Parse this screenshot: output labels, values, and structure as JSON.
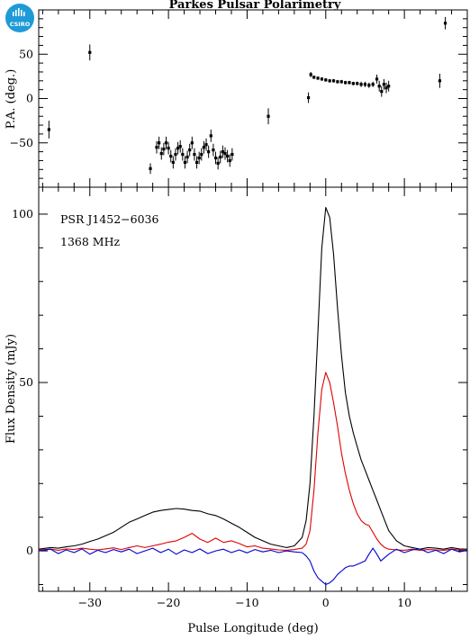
{
  "logo": {
    "text": "CSIRO",
    "color": "#1e9bd7"
  },
  "chart_data": [
    {
      "type": "scatter",
      "title": "Parkes Pulsar Polarimetry",
      "xlabel": "",
      "ylabel": "P.A. (deg.)",
      "xlim": [
        -36.5,
        18
      ],
      "ylim": [
        -100,
        100
      ],
      "yticks": [
        -50,
        0,
        50
      ],
      "xticks": [
        -30,
        -20,
        -10,
        0,
        10
      ],
      "series": [
        {
          "color": "#000000",
          "points": [
            {
              "x": -35.2,
              "y": -35,
              "err": 10
            },
            {
              "x": -30.0,
              "y": 52,
              "err": 9
            },
            {
              "x": -22.3,
              "y": -79,
              "err": 6
            },
            {
              "x": -21.5,
              "y": -55,
              "err": 7
            },
            {
              "x": -21.2,
              "y": -50,
              "err": 7
            },
            {
              "x": -20.9,
              "y": -62,
              "err": 7
            },
            {
              "x": -20.6,
              "y": -57,
              "err": 7
            },
            {
              "x": -20.3,
              "y": -50,
              "err": 7
            },
            {
              "x": -20.0,
              "y": -56,
              "err": 7
            },
            {
              "x": -19.7,
              "y": -65,
              "err": 7
            },
            {
              "x": -19.4,
              "y": -72,
              "err": 7
            },
            {
              "x": -19.1,
              "y": -63,
              "err": 7
            },
            {
              "x": -18.8,
              "y": -56,
              "err": 7
            },
            {
              "x": -18.5,
              "y": -54,
              "err": 7
            },
            {
              "x": -18.2,
              "y": -63,
              "err": 7
            },
            {
              "x": -17.9,
              "y": -72,
              "err": 7
            },
            {
              "x": -17.6,
              "y": -66,
              "err": 7
            },
            {
              "x": -17.3,
              "y": -58,
              "err": 7
            },
            {
              "x": -17.0,
              "y": -50,
              "err": 7
            },
            {
              "x": -16.7,
              "y": -63,
              "err": 7
            },
            {
              "x": -16.4,
              "y": -72,
              "err": 7
            },
            {
              "x": -16.1,
              "y": -67,
              "err": 7
            },
            {
              "x": -15.8,
              "y": -63,
              "err": 7
            },
            {
              "x": -15.5,
              "y": -55,
              "err": 7
            },
            {
              "x": -15.2,
              "y": -52,
              "err": 7
            },
            {
              "x": -14.9,
              "y": -60,
              "err": 7
            },
            {
              "x": -14.6,
              "y": -42,
              "err": 7
            },
            {
              "x": -14.3,
              "y": -58,
              "err": 7
            },
            {
              "x": -14.0,
              "y": -67,
              "err": 7
            },
            {
              "x": -13.7,
              "y": -73,
              "err": 7
            },
            {
              "x": -13.4,
              "y": -66,
              "err": 7
            },
            {
              "x": -13.1,
              "y": -60,
              "err": 7
            },
            {
              "x": -12.8,
              "y": -62,
              "err": 7
            },
            {
              "x": -12.5,
              "y": -65,
              "err": 7
            },
            {
              "x": -12.2,
              "y": -70,
              "err": 7
            },
            {
              "x": -11.9,
              "y": -63,
              "err": 7
            },
            {
              "x": -7.3,
              "y": -20,
              "err": 9
            },
            {
              "x": -2.2,
              "y": 1,
              "err": 6
            },
            {
              "x": -1.9,
              "y": 27,
              "err": 3
            },
            {
              "x": -1.5,
              "y": 24,
              "err": 2
            },
            {
              "x": -1.0,
              "y": 23,
              "err": 2
            },
            {
              "x": -0.5,
              "y": 22,
              "err": 2
            },
            {
              "x": 0.0,
              "y": 21,
              "err": 2
            },
            {
              "x": 0.5,
              "y": 20,
              "err": 2
            },
            {
              "x": 1.0,
              "y": 20,
              "err": 2
            },
            {
              "x": 1.5,
              "y": 19,
              "err": 2
            },
            {
              "x": 2.0,
              "y": 19,
              "err": 2
            },
            {
              "x": 2.5,
              "y": 18,
              "err": 2
            },
            {
              "x": 3.0,
              "y": 18,
              "err": 2
            },
            {
              "x": 3.5,
              "y": 17,
              "err": 2
            },
            {
              "x": 4.0,
              "y": 17,
              "err": 2
            },
            {
              "x": 4.5,
              "y": 16,
              "err": 3
            },
            {
              "x": 5.0,
              "y": 16,
              "err": 3
            },
            {
              "x": 5.5,
              "y": 15,
              "err": 3
            },
            {
              "x": 6.0,
              "y": 16,
              "err": 3
            },
            {
              "x": 6.5,
              "y": 22,
              "err": 5
            },
            {
              "x": 6.8,
              "y": 14,
              "err": 6
            },
            {
              "x": 7.1,
              "y": 8,
              "err": 6
            },
            {
              "x": 7.4,
              "y": 16,
              "err": 6
            },
            {
              "x": 7.7,
              "y": 12,
              "err": 6
            },
            {
              "x": 8.0,
              "y": 14,
              "err": 6
            },
            {
              "x": 14.5,
              "y": 20,
              "err": 8
            },
            {
              "x": 15.2,
              "y": 85,
              "err": 7
            }
          ]
        }
      ]
    },
    {
      "type": "line",
      "title": "",
      "xlabel": "Pulse Longitude (deg)",
      "ylabel": "Flux Density (mJy)",
      "xlim": [
        -36.5,
        18
      ],
      "ylim": [
        -12,
        108
      ],
      "yticks": [
        0,
        50,
        100
      ],
      "xticks": [
        -30,
        -20,
        -10,
        0,
        10
      ],
      "annotations": [
        "PSR J1452−6036",
        "1368 MHz"
      ],
      "series": [
        {
          "name": "",
          "color": "#000000",
          "x": [
            -36.5,
            -35,
            -34,
            -33,
            -32,
            -31,
            -30,
            -29,
            -28,
            -27,
            -26,
            -25,
            -24,
            -23,
            -22,
            -21,
            -20,
            -19,
            -18,
            -17,
            -16,
            -15,
            -14,
            -13,
            -12,
            -11,
            -10,
            -9,
            -8,
            -7,
            -6,
            -5,
            -4,
            -3,
            -2.5,
            -2,
            -1.5,
            -1,
            -0.5,
            0,
            0.5,
            1,
            1.5,
            2,
            2.5,
            3,
            3.5,
            4,
            4.5,
            5,
            5.5,
            6,
            6.5,
            7,
            7.5,
            8,
            9,
            10,
            11,
            12,
            13,
            14,
            15,
            16,
            17,
            18
          ],
          "y": [
            0.5,
            1.0,
            0.8,
            1.2,
            1.5,
            2.0,
            2.8,
            3.5,
            4.5,
            5.5,
            7.0,
            8.5,
            9.5,
            10.5,
            11.5,
            12.0,
            12.3,
            12.6,
            12.4,
            12.0,
            11.8,
            11.0,
            10.5,
            9.5,
            8.2,
            7.0,
            5.5,
            4.0,
            3.0,
            2.0,
            1.5,
            1.0,
            1.5,
            4.0,
            9.0,
            20.0,
            40.0,
            65.0,
            90.0,
            102.0,
            99.0,
            88.0,
            72.0,
            58.0,
            47.0,
            40.0,
            35.0,
            31.0,
            27.0,
            24.0,
            21.0,
            18.0,
            15.0,
            12.0,
            9.0,
            6.0,
            3.0,
            1.5,
            1.0,
            0.5,
            1.0,
            0.8,
            0.5,
            1.0,
            0.6,
            0.5
          ]
        },
        {
          "name": "",
          "color": "#e00000",
          "x": [
            -36.5,
            -35,
            -34,
            -33,
            -32,
            -31,
            -30,
            -29,
            -28,
            -27,
            -26,
            -25,
            -24,
            -23,
            -22,
            -21,
            -20,
            -19,
            -18,
            -17,
            -16,
            -15,
            -14,
            -13,
            -12,
            -11,
            -10,
            -9,
            -8,
            -7,
            -6,
            -5,
            -4,
            -3,
            -2.5,
            -2,
            -1.5,
            -1,
            -0.5,
            0,
            0.5,
            1,
            1.5,
            2,
            2.5,
            3,
            3.5,
            4,
            4.5,
            5,
            5.5,
            6,
            6.5,
            7,
            7.5,
            8,
            9,
            10,
            11,
            12,
            13,
            14,
            15,
            16,
            17,
            18
          ],
          "y": [
            0.3,
            0.5,
            0.2,
            0.6,
            0.4,
            0.8,
            0.5,
            0.3,
            0.6,
            0.9,
            0.4,
            1.0,
            1.5,
            1.0,
            1.5,
            2.0,
            2.6,
            3.0,
            4.0,
            5.2,
            3.5,
            2.5,
            3.8,
            2.5,
            3.0,
            2.2,
            1.2,
            1.5,
            0.8,
            0.6,
            0.3,
            0.2,
            0.4,
            0.8,
            2.0,
            6.0,
            18.0,
            35.0,
            48.0,
            53.0,
            50.0,
            44.0,
            37.0,
            29.0,
            23.0,
            18.0,
            14.0,
            11.0,
            9.0,
            8.0,
            7.5,
            5.5,
            3.5,
            2.0,
            1.0,
            0.5,
            0.3,
            0.2,
            0.5,
            0.2,
            0.4,
            0.3,
            0.2,
            0.5,
            0.3,
            0.2
          ]
        },
        {
          "name": "",
          "color": "#0000d0",
          "x": [
            -36.5,
            -35,
            -34,
            -33,
            -32,
            -31,
            -30,
            -29,
            -28,
            -27,
            -26,
            -25,
            -24,
            -23,
            -22,
            -21,
            -20,
            -19,
            -18,
            -17,
            -16,
            -15,
            -14,
            -13,
            -12,
            -11,
            -10,
            -9,
            -8,
            -7,
            -6,
            -5,
            -4,
            -3,
            -2.5,
            -2,
            -1.5,
            -1,
            -0.5,
            0,
            0.5,
            1,
            1.5,
            2,
            2.5,
            3,
            3.5,
            4,
            4.5,
            5,
            5.5,
            6,
            6.5,
            7,
            7.5,
            8,
            9,
            10,
            11,
            12,
            13,
            14,
            15,
            16,
            17,
            18
          ],
          "y": [
            0.0,
            0.5,
            -0.8,
            0.3,
            -0.5,
            0.6,
            -1.0,
            0.2,
            -0.5,
            0.4,
            -0.3,
            0.5,
            -0.8,
            0.0,
            0.8,
            -0.5,
            0.5,
            -1.0,
            0.3,
            -0.5,
            0.6,
            -0.8,
            0.0,
            0.5,
            -0.5,
            0.3,
            -0.6,
            0.4,
            -0.3,
            0.2,
            -0.5,
            0.0,
            -0.3,
            -0.5,
            -1.5,
            -3.0,
            -6.0,
            -8.0,
            -9.0,
            -10.0,
            -9.5,
            -8.5,
            -7.0,
            -6.0,
            -5.0,
            -4.5,
            -4.5,
            -4.0,
            -3.5,
            -3.0,
            -1.0,
            0.8,
            -1.0,
            -3.0,
            -2.0,
            -1.0,
            0.5,
            -0.5,
            0.3,
            0.6,
            -0.5,
            0.2,
            -0.8,
            0.5,
            -0.3,
            0.2
          ]
        }
      ]
    }
  ]
}
